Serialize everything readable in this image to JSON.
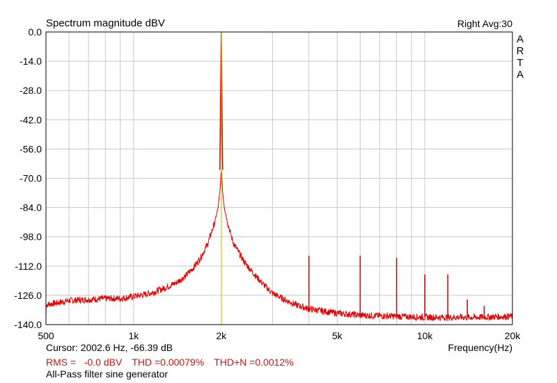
{
  "header": {
    "title": "Spectrum magnitude dBV",
    "channel": "Right  Avg:30",
    "brand_letters": [
      "A",
      "R",
      "T",
      "A"
    ]
  },
  "footer": {
    "cursor": "Cursor:  2002.6 Hz, -66.39 dB",
    "rms": "RMS =   -0.0 dBV",
    "thd": "THD =0.00079%",
    "thdn": "THD+N =0.0012%",
    "note": "All-Pass filter sine generator"
  },
  "colors": {
    "trace": "#e00000",
    "cursor_line": "#c8c800",
    "grid": "#c8c8c8",
    "frame": "#000000"
  },
  "chart_data": {
    "type": "line",
    "title": "Spectrum magnitude dBV",
    "xlabel": "Frequency(Hz)",
    "ylabel": "",
    "xscale": "log",
    "xlim": [
      500,
      20000
    ],
    "ylim": [
      -140,
      0
    ],
    "grid": true,
    "x_ticks": [
      {
        "value": 500,
        "label": "500"
      },
      {
        "value": 1000,
        "label": "1k"
      },
      {
        "value": 2000,
        "label": "2k"
      },
      {
        "value": 5000,
        "label": "5k"
      },
      {
        "value": 10000,
        "label": "10k"
      },
      {
        "value": 20000,
        "label": "20k"
      }
    ],
    "x_gridlines": [
      600,
      700,
      800,
      900,
      3000,
      4000,
      6000,
      7000,
      8000,
      9000
    ],
    "y_ticks": [
      {
        "value": 0,
        "label": "0.0"
      },
      {
        "value": -14,
        "label": "-14.0"
      },
      {
        "value": -28,
        "label": "-28.0"
      },
      {
        "value": -42,
        "label": "-42.0"
      },
      {
        "value": -56,
        "label": "-56.0"
      },
      {
        "value": -70,
        "label": "-70.0"
      },
      {
        "value": -84,
        "label": "-84.0"
      },
      {
        "value": -98,
        "label": "-98.0"
      },
      {
        "value": -112,
        "label": "-112.0"
      },
      {
        "value": -126,
        "label": "-126.0"
      },
      {
        "value": -140,
        "label": "-140.0"
      }
    ],
    "series": [
      {
        "values_are": "[frequency Hz, level dBV] noise-floor envelope",
        "points": [
          [
            500,
            -130.5
          ],
          [
            550,
            -129.5
          ],
          [
            600,
            -128.5
          ],
          [
            700,
            -128
          ],
          [
            800,
            -127.5
          ],
          [
            900,
            -127.5
          ],
          [
            1000,
            -126.5
          ],
          [
            1100,
            -125.5
          ],
          [
            1200,
            -124
          ],
          [
            1300,
            -122
          ],
          [
            1400,
            -120
          ],
          [
            1500,
            -117
          ],
          [
            1600,
            -113
          ],
          [
            1700,
            -108
          ],
          [
            1800,
            -101
          ],
          [
            1900,
            -91
          ],
          [
            1950,
            -84
          ],
          [
            1980,
            -76
          ],
          [
            1995,
            -68
          ],
          [
            2000,
            0
          ],
          [
            2005,
            -66
          ],
          [
            2020,
            -76
          ],
          [
            2050,
            -84
          ],
          [
            2100,
            -91
          ],
          [
            2200,
            -101
          ],
          [
            2400,
            -110
          ],
          [
            2600,
            -116
          ],
          [
            2800,
            -121
          ],
          [
            3000,
            -125
          ],
          [
            3300,
            -128
          ],
          [
            3600,
            -130.5
          ],
          [
            4000,
            -132.5
          ],
          [
            5000,
            -134.5
          ],
          [
            6000,
            -135.5
          ],
          [
            8000,
            -136
          ],
          [
            10000,
            -136.5
          ],
          [
            12000,
            -136.5
          ],
          [
            15000,
            -136.5
          ],
          [
            20000,
            -136
          ]
        ]
      }
    ],
    "harmonics": [
      {
        "x": 4000,
        "y": -107
      },
      {
        "x": 6000,
        "y": -107
      },
      {
        "x": 8000,
        "y": -108
      },
      {
        "x": 10000,
        "y": -116
      },
      {
        "x": 12000,
        "y": -116
      },
      {
        "x": 14000,
        "y": -128
      },
      {
        "x": 16000,
        "y": -131
      }
    ],
    "cursor": {
      "x": 2002.6,
      "y": -66.39
    }
  }
}
